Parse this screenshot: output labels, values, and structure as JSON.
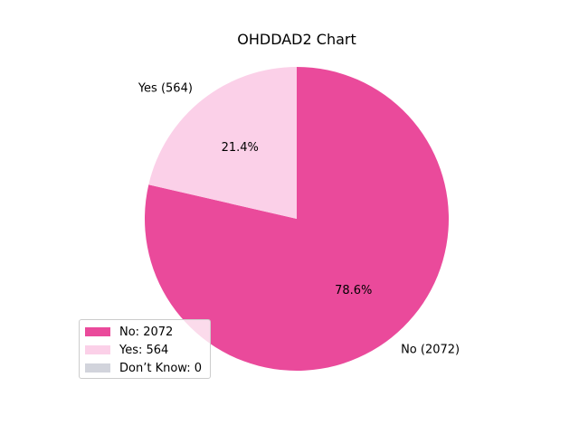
{
  "chart_data": {
    "type": "pie",
    "title": "OHDDAD2 Chart",
    "slices": [
      {
        "label": "No",
        "value": 2072,
        "percent_label": "78.6%",
        "outer_label": "No (2072)",
        "legend_label": "No: 2072",
        "color": "#ea4a9b"
      },
      {
        "label": "Yes",
        "value": 564,
        "percent_label": "21.4%",
        "outer_label": "Yes (564)",
        "legend_label": "Yes: 564",
        "color": "#fbd0e8"
      },
      {
        "label": "Don’t Know",
        "value": 0,
        "percent_label": "",
        "outer_label": "",
        "legend_label": "Don’t Know: 0",
        "color": "#d2d4dc"
      }
    ],
    "start_angle_deg": 90,
    "direction": "clockwise",
    "legend_position": "lower-left"
  }
}
